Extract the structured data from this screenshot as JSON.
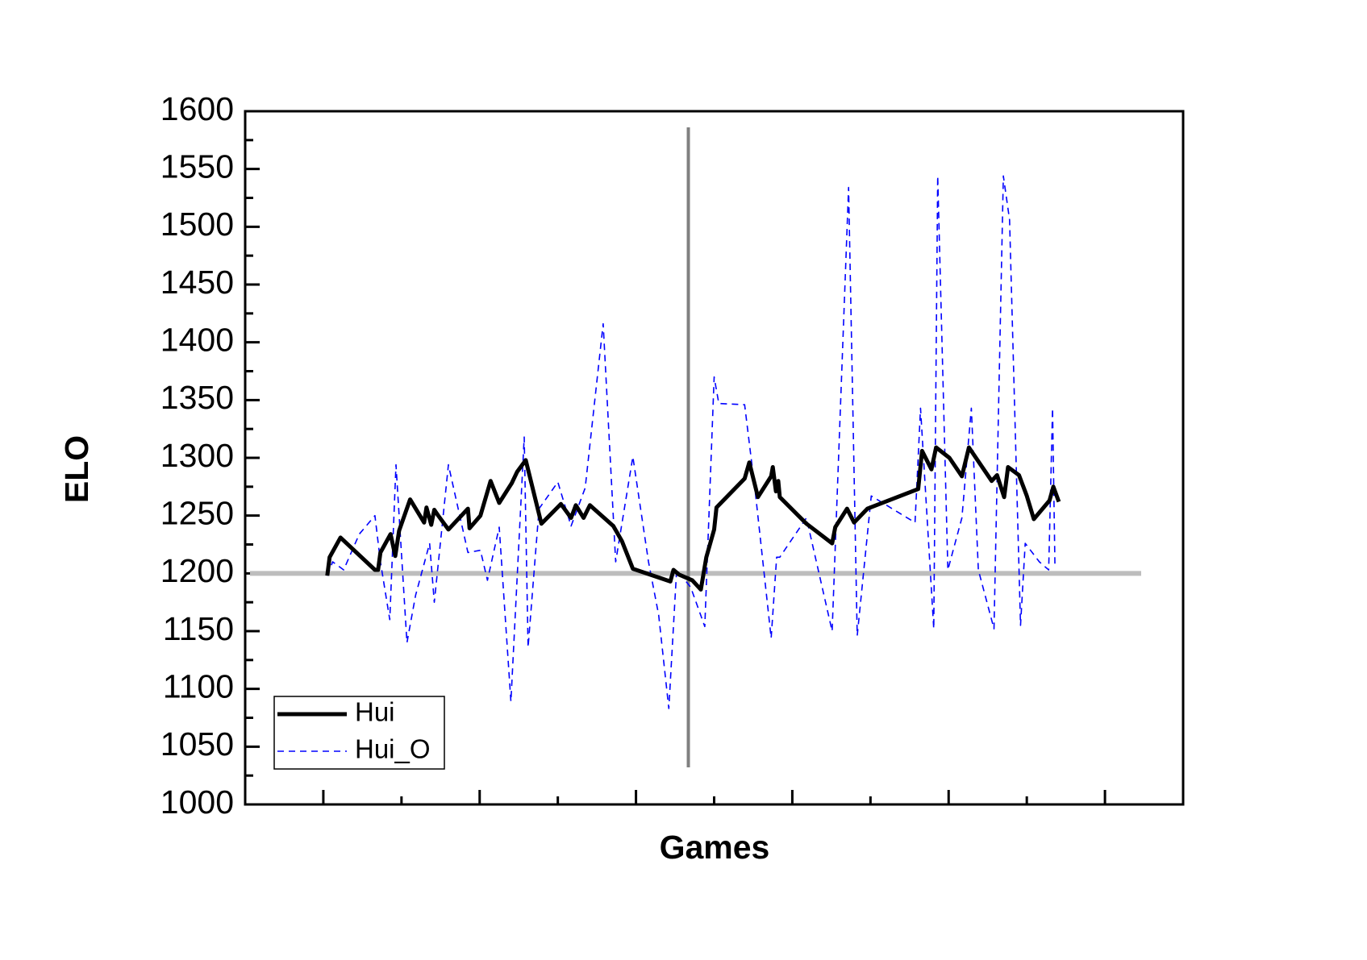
{
  "chart_data": {
    "type": "line",
    "xlabel": "Games",
    "ylabel": "ELO",
    "xlim": [
      0,
      120
    ],
    "ylim": [
      1000,
      1600
    ],
    "xticks": [
      10,
      30,
      50,
      70,
      90,
      110
    ],
    "xticks_minor": [
      20,
      40,
      60,
      80,
      100
    ],
    "yticks": [
      1000,
      1050,
      1100,
      1150,
      1200,
      1250,
      1300,
      1350,
      1400,
      1450,
      1500,
      1550,
      1600
    ],
    "yticks_minor": [
      1025,
      1075,
      1125,
      1175,
      1225,
      1275,
      1325,
      1375,
      1425,
      1475,
      1525,
      1575
    ],
    "reference_lines": {
      "y": 1200,
      "x": 56.7
    },
    "legend": "lower left",
    "series": [
      {
        "name": "Hui",
        "color": "#000000",
        "style": "solid",
        "x": [
          10.5,
          10.8,
          12.2,
          16.6,
          17.0,
          17.3,
          18.6,
          19.2,
          19.7,
          21.1,
          22.9,
          23.2,
          23.8,
          24.2,
          24.7,
          26.0,
          28.5,
          28.7,
          30.1,
          31.4,
          32.5,
          34.1,
          34.8,
          35.9,
          37.9,
          40.4,
          41.7,
          42.3,
          43.3,
          44.1,
          47.1,
          48.2,
          49.6,
          54.4,
          54.8,
          55.5,
          57.2,
          58.3,
          59.0,
          60.0,
          60.3,
          63.9,
          64.5,
          65.6,
          67.3,
          67.5,
          67.9,
          68.2,
          68.4,
          71.8,
          75.1,
          75.5,
          77.0,
          77.9,
          79.6,
          86.1,
          86.6,
          87.8,
          88.4,
          90.1,
          91.7,
          92.6,
          95.5,
          96.2,
          97.1,
          97.6,
          99.0,
          100.0,
          100.9,
          102.9,
          103.4,
          104.1
        ],
        "values": [
          1198,
          1214,
          1231,
          1203,
          1203,
          1218,
          1234,
          1215,
          1237,
          1264,
          1244,
          1257,
          1242,
          1255,
          1250,
          1238,
          1256,
          1239,
          1250,
          1280,
          1261,
          1278,
          1288,
          1298,
          1243,
          1260,
          1248,
          1259,
          1248,
          1259,
          1241,
          1228,
          1204,
          1193,
          1203,
          1199,
          1194,
          1186,
          1214,
          1238,
          1257,
          1282,
          1296,
          1266,
          1284,
          1292,
          1271,
          1280,
          1266,
          1243,
          1226,
          1240,
          1256,
          1244,
          1256,
          1273,
          1306,
          1290,
          1309,
          1300,
          1284,
          1309,
          1280,
          1285,
          1266,
          1292,
          1285,
          1267,
          1247,
          1263,
          1275,
          1262
        ]
      },
      {
        "name": "Hui_O",
        "color": "#0000ff",
        "style": "dashed",
        "x": [
          10.5,
          11.2,
          12.6,
          14.6,
          16.6,
          17.3,
          18.5,
          19.3,
          20.7,
          21.8,
          23.6,
          24.2,
          26.0,
          28.5,
          30.1,
          31.0,
          32.5,
          34.0,
          35.7,
          36.2,
          37.6,
          40.0,
          41.7,
          43.5,
          45.8,
          47.4,
          49.6,
          51.6,
          52.9,
          54.2,
          55.2,
          57.0,
          58.8,
          60.0,
          60.6,
          63.9,
          65.3,
          67.3,
          68.0,
          68.4,
          71.8,
          75.1,
          77.2,
          78.3,
          80.1,
          85.7,
          86.4,
          88.1,
          88.6,
          89.9,
          91.7,
          92.9,
          93.8,
          95.8,
          97.0,
          97.8,
          99.2,
          99.8,
          101.6,
          102.8,
          103.3,
          103.6
        ],
        "values": [
          1198,
          1210,
          1203,
          1234,
          1250,
          1210,
          1160,
          1294,
          1140,
          1181,
          1226,
          1175,
          1294,
          1218,
          1220,
          1194,
          1240,
          1089,
          1318,
          1136,
          1256,
          1279,
          1241,
          1274,
          1416,
          1210,
          1301,
          1210,
          1164,
          1083,
          1203,
          1188,
          1154,
          1370,
          1347,
          1346,
          1268,
          1144,
          1214,
          1214,
          1248,
          1150,
          1534,
          1146,
          1267,
          1244,
          1343,
          1152,
          1544,
          1203,
          1248,
          1343,
          1203,
          1152,
          1544,
          1506,
          1155,
          1226,
          1210,
          1203,
          1343,
          1205
        ]
      }
    ]
  }
}
